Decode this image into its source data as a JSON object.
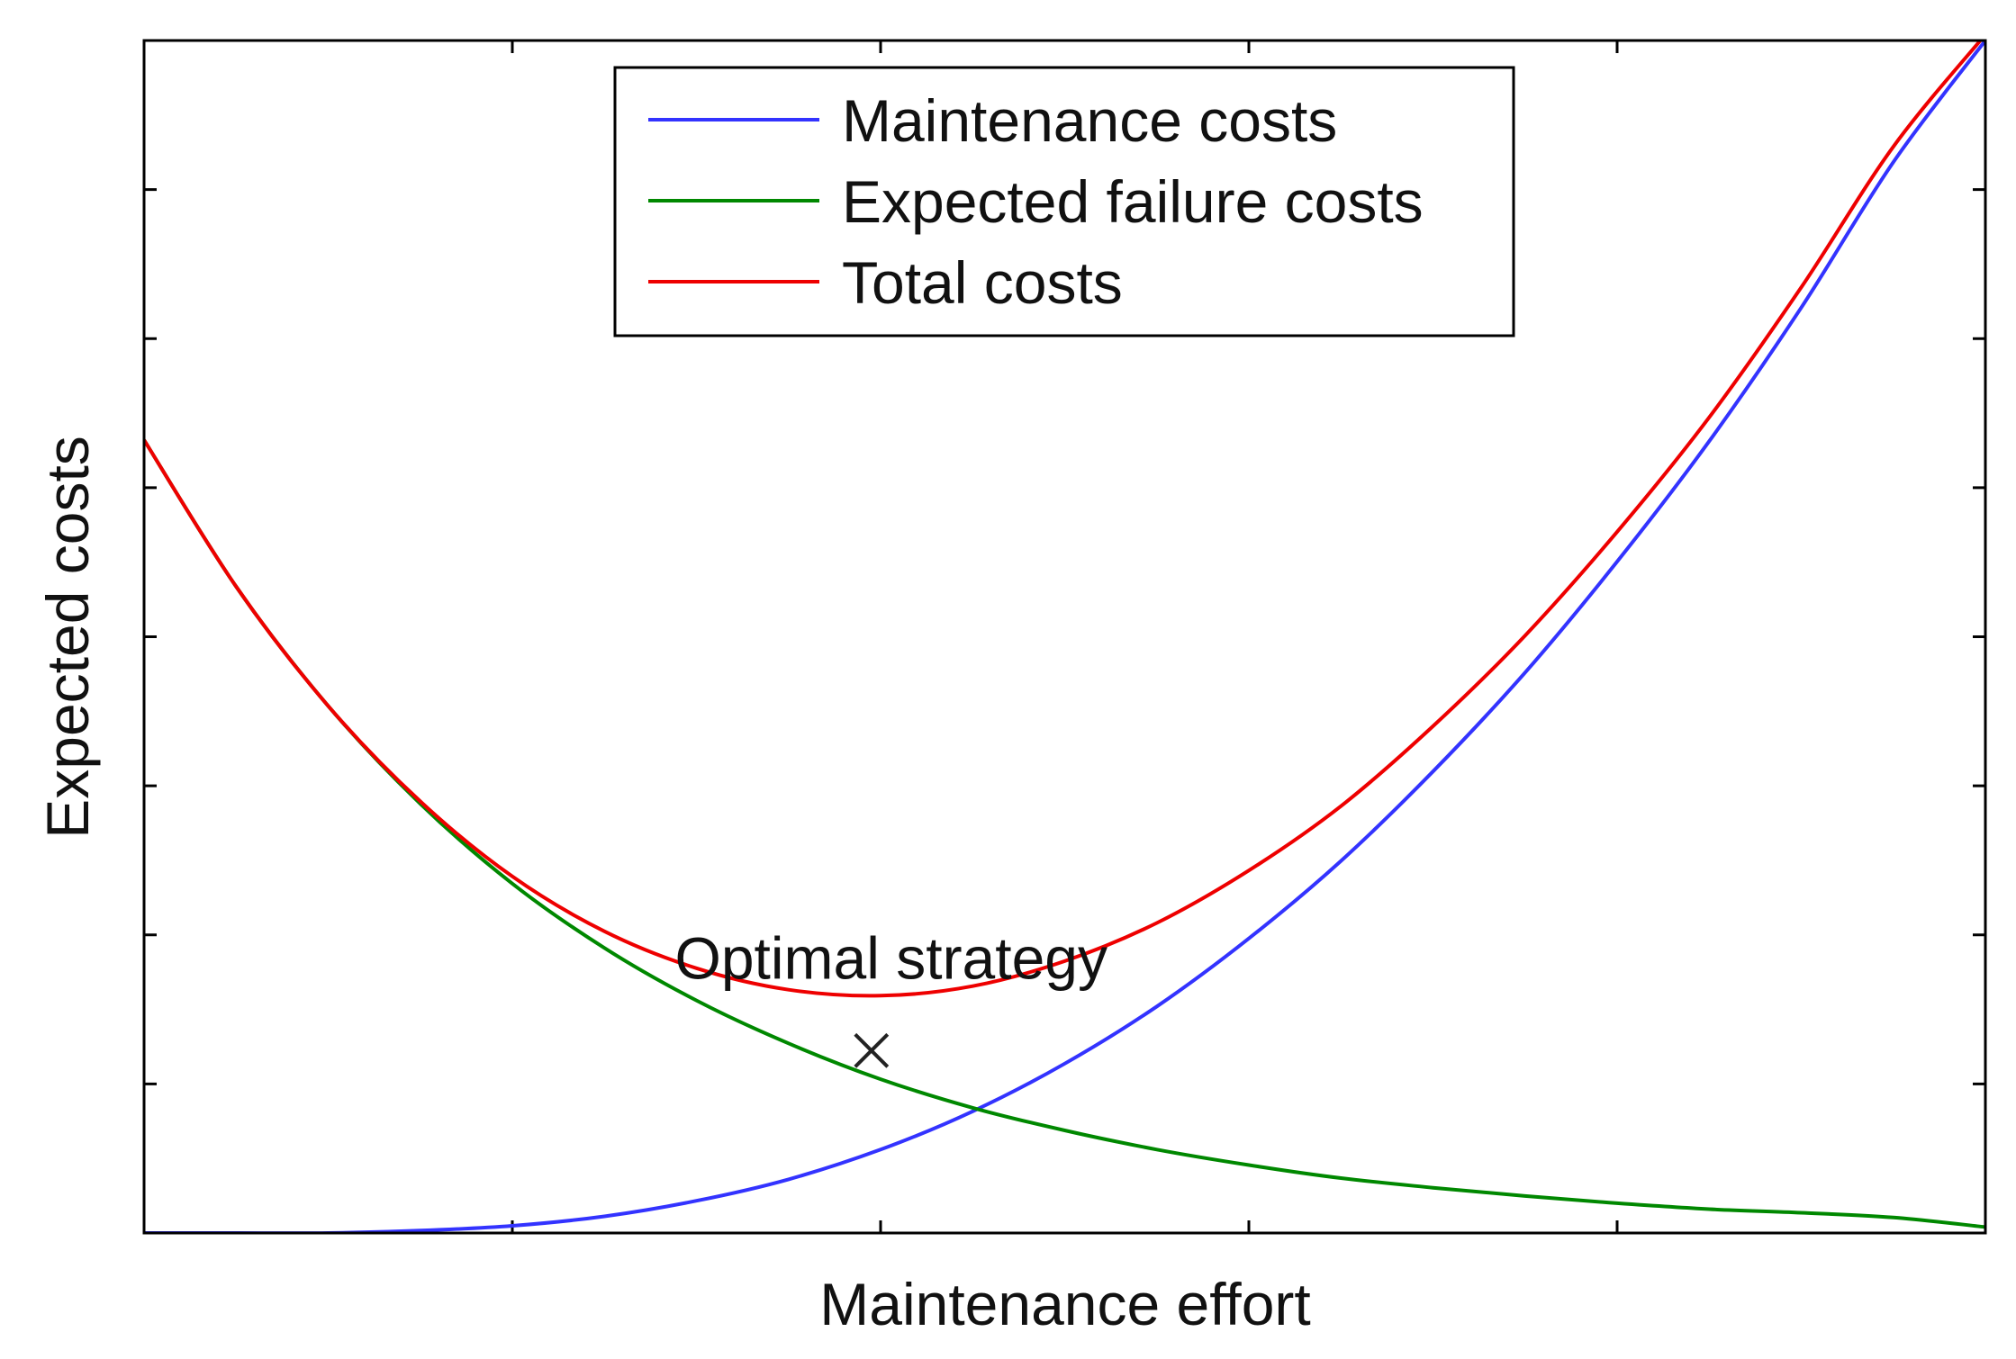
{
  "chart_data": {
    "type": "line",
    "title": "",
    "xlabel": "Maintenance effort",
    "ylabel": "Expected costs",
    "xlim": [
      0,
      1
    ],
    "ylim": [
      0,
      1
    ],
    "x_ticks_labeled": false,
    "y_ticks_labeled": false,
    "grid": false,
    "legend_position": "top-center",
    "series": [
      {
        "name": "Maintenance costs",
        "color": "#3333ff",
        "x": [
          0,
          0.05,
          0.1,
          0.15,
          0.2,
          0.25,
          0.3,
          0.35,
          0.4,
          0.45,
          0.5,
          0.55,
          0.6,
          0.65,
          0.7,
          0.75,
          0.8,
          0.85,
          0.9,
          0.95,
          1
        ],
        "y": [
          0.0,
          0.0,
          0.0,
          0.002,
          0.006,
          0.014,
          0.027,
          0.045,
          0.07,
          0.102,
          0.142,
          0.19,
          0.247,
          0.312,
          0.387,
          0.47,
          0.563,
          0.664,
          0.776,
          0.898,
          1.0
        ]
      },
      {
        "name": "Expected failure costs",
        "color": "#008800",
        "x": [
          0,
          0.05,
          0.1,
          0.15,
          0.2,
          0.25,
          0.3,
          0.35,
          0.4,
          0.45,
          0.5,
          0.55,
          0.6,
          0.65,
          0.7,
          0.75,
          0.8,
          0.85,
          0.9,
          0.95,
          1
        ],
        "y": [
          0.665,
          0.542,
          0.442,
          0.36,
          0.293,
          0.239,
          0.195,
          0.159,
          0.129,
          0.105,
          0.086,
          0.07,
          0.057,
          0.046,
          0.038,
          0.031,
          0.025,
          0.02,
          0.017,
          0.013,
          0.005
        ]
      },
      {
        "name": "Total costs",
        "color": "#ee0000",
        "x": [
          0,
          0.05,
          0.1,
          0.15,
          0.2,
          0.25,
          0.3,
          0.35,
          0.4,
          0.45,
          0.5,
          0.55,
          0.6,
          0.65,
          0.7,
          0.75,
          0.8,
          0.85,
          0.9,
          0.95,
          1
        ],
        "y": [
          0.665,
          0.542,
          0.442,
          0.362,
          0.299,
          0.253,
          0.222,
          0.204,
          0.199,
          0.207,
          0.228,
          0.26,
          0.304,
          0.358,
          0.425,
          0.501,
          0.588,
          0.684,
          0.793,
          0.911,
          1.005
        ]
      }
    ],
    "annotations": [
      {
        "text": "Optimal strategy",
        "marker": "x",
        "x": 0.395,
        "y": 0.153
      }
    ]
  }
}
